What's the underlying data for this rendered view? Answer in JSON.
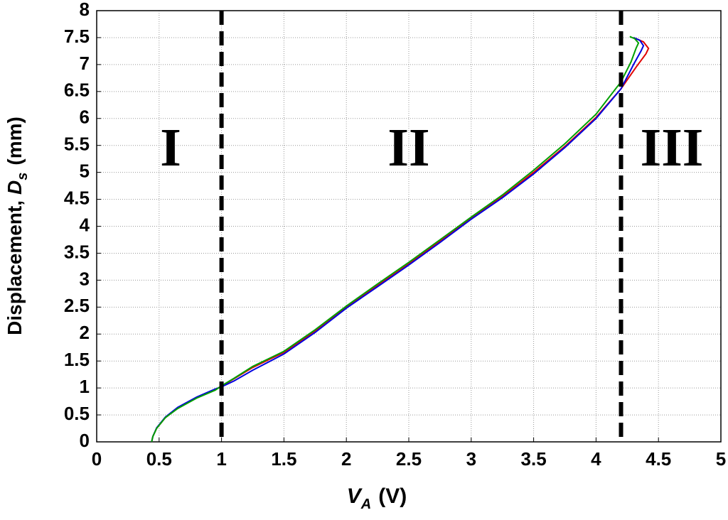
{
  "chart_data": {
    "type": "line",
    "x_label": {
      "symbol": "V",
      "subscript": "A",
      "unit": "(V)"
    },
    "y_label": {
      "text": "Displacement,",
      "symbol": "D",
      "subscript": "s",
      "unit": "(mm)"
    },
    "xlim": [
      0,
      5
    ],
    "ylim": [
      0,
      8
    ],
    "xticks": [
      0,
      0.5,
      1,
      1.5,
      2,
      2.5,
      3,
      3.5,
      4,
      4.5,
      5
    ],
    "yticks": [
      0,
      0.5,
      1,
      1.5,
      2,
      2.5,
      3,
      3.5,
      4,
      4.5,
      5,
      5.5,
      6,
      6.5,
      7,
      7.5,
      8
    ],
    "grid": true,
    "series": [
      {
        "color": "#e00000",
        "x": [
          0.44,
          0.45,
          0.48,
          0.55,
          0.65,
          0.8,
          0.95,
          1.0,
          1.1,
          1.25,
          1.5,
          1.75,
          2.0,
          2.25,
          2.5,
          2.75,
          3.0,
          3.25,
          3.5,
          3.75,
          4.0,
          4.2,
          4.32,
          4.4,
          4.42,
          4.38,
          4.3
        ],
        "values": [
          0,
          0.1,
          0.25,
          0.45,
          0.63,
          0.82,
          0.97,
          1.03,
          1.17,
          1.38,
          1.66,
          2.06,
          2.5,
          2.9,
          3.3,
          3.72,
          4.15,
          4.55,
          5.0,
          5.48,
          6.02,
          6.55,
          6.95,
          7.2,
          7.3,
          7.42,
          7.5
        ]
      },
      {
        "color": "#0000e0",
        "x": [
          0.44,
          0.45,
          0.48,
          0.55,
          0.65,
          0.8,
          0.95,
          1.0,
          1.1,
          1.25,
          1.5,
          1.75,
          2.0,
          2.25,
          2.5,
          2.75,
          3.0,
          3.25,
          3.5,
          3.75,
          4.0,
          4.2,
          4.3,
          4.36,
          4.38,
          4.35,
          4.3
        ],
        "values": [
          0,
          0.1,
          0.26,
          0.46,
          0.64,
          0.83,
          0.98,
          1.02,
          1.13,
          1.33,
          1.63,
          2.03,
          2.48,
          2.88,
          3.28,
          3.7,
          4.13,
          4.53,
          4.97,
          5.46,
          6.0,
          6.55,
          7.0,
          7.25,
          7.35,
          7.45,
          7.5
        ]
      },
      {
        "color": "#00a000",
        "x": [
          0.44,
          0.45,
          0.48,
          0.55,
          0.65,
          0.8,
          0.95,
          1.0,
          1.1,
          1.25,
          1.5,
          1.75,
          2.0,
          2.25,
          2.5,
          2.75,
          3.0,
          3.25,
          3.5,
          3.75,
          4.0,
          4.2,
          4.28,
          4.32,
          4.34,
          4.31,
          4.27
        ],
        "values": [
          0,
          0.1,
          0.25,
          0.45,
          0.62,
          0.81,
          0.96,
          1.04,
          1.18,
          1.4,
          1.68,
          2.08,
          2.52,
          2.93,
          3.33,
          3.75,
          4.17,
          4.58,
          5.04,
          5.53,
          6.08,
          6.68,
          7.05,
          7.3,
          7.4,
          7.48,
          7.52
        ]
      }
    ],
    "vlines": [
      1,
      4.2
    ],
    "regions": [
      "I",
      "II",
      "III"
    ]
  }
}
